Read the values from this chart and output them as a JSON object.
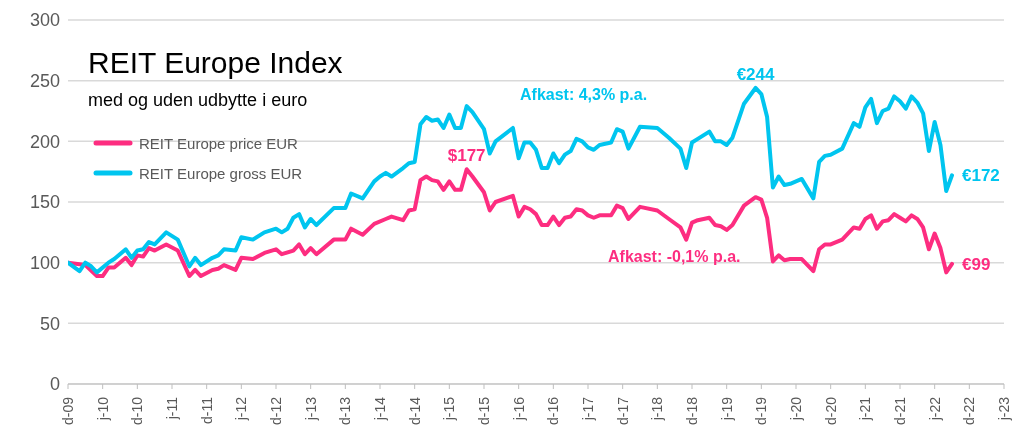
{
  "chart_data": {
    "type": "line",
    "title": "REIT Europe Index",
    "subtitle": "med og uden udbytte i euro",
    "annotations": [
      "Afkast: 4,3% p.a.",
      "Afkast: -0,1% p.a.",
      {
        "text": "$177",
        "x": "2015-09",
        "y": 177
      },
      {
        "text": "€244",
        "x": "2019-11",
        "y": 244
      },
      {
        "text": "€172",
        "x": "2022-09",
        "y": 172
      },
      {
        "text": "€99",
        "x": "2022-09",
        "y": 99
      }
    ],
    "series": [
      {
        "name": "REIT Europe price EUR",
        "color": "#fd2d80",
        "x": [
          "2009-12",
          "2010-03",
          "2010-05",
          "2010-06",
          "2010-07",
          "2010-08",
          "2010-10",
          "2010-11",
          "2010-12",
          "2011-01",
          "2011-02",
          "2011-03",
          "2011-05",
          "2011-07",
          "2011-09",
          "2011-10",
          "2011-11",
          "2012-01",
          "2012-02",
          "2012-03",
          "2012-05",
          "2012-06",
          "2012-08",
          "2012-10",
          "2012-12",
          "2013-01",
          "2013-03",
          "2013-04",
          "2013-05",
          "2013-06",
          "2013-07",
          "2013-10",
          "2013-12",
          "2014-01",
          "2014-03",
          "2014-05",
          "2014-07",
          "2014-08",
          "2014-10",
          "2014-11",
          "2014-12",
          "2015-01",
          "2015-02",
          "2015-03",
          "2015-04",
          "2015-05",
          "2015-06",
          "2015-07",
          "2015-08",
          "2015-09",
          "2015-10",
          "2015-12",
          "2016-01",
          "2016-02",
          "2016-05",
          "2016-06",
          "2016-07",
          "2016-08",
          "2016-09",
          "2016-10",
          "2016-11",
          "2016-12",
          "2017-01",
          "2017-02",
          "2017-03",
          "2017-04",
          "2017-05",
          "2017-06",
          "2017-07",
          "2017-08",
          "2017-10",
          "2017-11",
          "2017-12",
          "2018-01",
          "2018-03",
          "2018-06",
          "2018-08",
          "2018-10",
          "2018-11",
          "2018-12",
          "2019-01",
          "2019-03",
          "2019-04",
          "2019-05",
          "2019-06",
          "2019-07",
          "2019-09",
          "2019-11",
          "2019-12",
          "2020-01",
          "2020-02",
          "2020-03",
          "2020-04",
          "2020-05",
          "2020-07",
          "2020-09",
          "2020-10",
          "2020-11",
          "2020-12",
          "2021-02",
          "2021-04",
          "2021-05",
          "2021-06",
          "2021-07",
          "2021-08",
          "2021-09",
          "2021-10",
          "2021-11",
          "2021-12",
          "2022-01",
          "2022-02",
          "2022-03",
          "2022-04",
          "2022-05",
          "2022-06",
          "2022-07",
          "2022-08",
          "2022-09"
        ],
        "values": [
          100,
          98,
          89,
          89,
          96,
          96,
          104,
          98,
          106,
          105,
          112,
          110,
          115,
          110,
          89,
          94,
          89,
          94,
          95,
          98,
          94,
          104,
          103,
          108,
          111,
          107,
          110,
          115,
          107,
          112,
          107,
          119,
          119,
          128,
          123,
          132,
          136,
          138,
          135,
          143,
          144,
          168,
          171,
          168,
          167,
          160,
          167,
          160,
          160,
          177,
          171,
          158,
          143,
          150,
          155,
          138,
          146,
          144,
          140,
          131,
          131,
          138,
          131,
          137,
          138,
          144,
          143,
          139,
          137,
          139,
          139,
          147,
          145,
          136,
          146,
          143,
          136,
          129,
          119,
          133,
          135,
          137,
          131,
          130,
          127,
          131,
          147,
          154,
          152,
          137,
          101,
          106,
          102,
          103,
          103,
          93,
          111,
          115,
          115,
          119,
          129,
          128,
          136,
          139,
          128,
          134,
          135,
          140,
          137,
          134,
          139,
          136,
          129,
          111,
          124,
          112,
          92,
          99
        ]
      },
      {
        "name": "REIT Europe gross EUR",
        "color": "#00c5ef",
        "x": [
          "2009-12",
          "2010-02",
          "2010-03",
          "2010-04",
          "2010-05",
          "2010-07",
          "2010-08",
          "2010-10",
          "2010-11",
          "2010-12",
          "2011-01",
          "2011-02",
          "2011-03",
          "2011-05",
          "2011-07",
          "2011-09",
          "2011-10",
          "2011-11",
          "2012-01",
          "2012-02",
          "2012-03",
          "2012-05",
          "2012-06",
          "2012-08",
          "2012-10",
          "2012-12",
          "2013-01",
          "2013-02",
          "2013-03",
          "2013-04",
          "2013-05",
          "2013-06",
          "2013-07",
          "2013-10",
          "2013-12",
          "2014-01",
          "2014-03",
          "2014-05",
          "2014-06",
          "2014-07",
          "2014-08",
          "2014-10",
          "2014-11",
          "2014-12",
          "2015-01",
          "2015-02",
          "2015-03",
          "2015-04",
          "2015-05",
          "2015-06",
          "2015-07",
          "2015-08",
          "2015-09",
          "2015-10",
          "2015-12",
          "2016-01",
          "2016-02",
          "2016-05",
          "2016-06",
          "2016-07",
          "2016-08",
          "2016-09",
          "2016-10",
          "2016-11",
          "2016-12",
          "2017-01",
          "2017-02",
          "2017-03",
          "2017-04",
          "2017-05",
          "2017-06",
          "2017-07",
          "2017-08",
          "2017-10",
          "2017-11",
          "2017-12",
          "2018-01",
          "2018-03",
          "2018-06",
          "2018-08",
          "2018-10",
          "2018-11",
          "2018-12",
          "2019-01",
          "2019-03",
          "2019-04",
          "2019-05",
          "2019-06",
          "2019-07",
          "2019-09",
          "2019-11",
          "2019-12",
          "2020-01",
          "2020-02",
          "2020-03",
          "2020-04",
          "2020-05",
          "2020-07",
          "2020-09",
          "2020-10",
          "2020-11",
          "2020-12",
          "2021-02",
          "2021-04",
          "2021-05",
          "2021-06",
          "2021-07",
          "2021-08",
          "2021-09",
          "2021-10",
          "2021-11",
          "2021-12",
          "2022-01",
          "2022-02",
          "2022-03",
          "2022-04",
          "2022-05",
          "2022-06",
          "2022-07",
          "2022-08",
          "2022-09"
        ],
        "values": [
          100,
          93,
          100,
          97,
          92,
          100,
          103,
          111,
          104,
          110,
          111,
          117,
          115,
          125,
          119,
          97,
          104,
          98,
          104,
          106,
          111,
          110,
          121,
          119,
          125,
          128,
          125,
          128,
          137,
          140,
          129,
          136,
          131,
          145,
          145,
          157,
          153,
          167,
          171,
          174,
          171,
          178,
          182,
          183,
          214,
          220,
          217,
          218,
          211,
          222,
          211,
          211,
          229,
          224,
          210,
          190,
          200,
          211,
          186,
          199,
          199,
          193,
          178,
          178,
          190,
          182,
          189,
          192,
          202,
          200,
          195,
          193,
          197,
          199,
          210,
          208,
          194,
          212,
          211,
          203,
          194,
          178,
          199,
          202,
          208,
          200,
          200,
          197,
          203,
          231,
          244,
          239,
          220,
          162,
          171,
          164,
          165,
          169,
          153,
          183,
          188,
          189,
          194,
          215,
          212,
          228,
          235,
          215,
          225,
          227,
          237,
          233,
          227,
          237,
          232,
          223,
          192,
          216,
          197,
          159,
          172
        ]
      }
    ],
    "xlim": [
      "2009-12",
      "2023-06"
    ],
    "xticks": [
      {
        "value": "2009-12",
        "label": "d-09"
      },
      {
        "value": "2010-06",
        "label": "j-10"
      },
      {
        "value": "2010-12",
        "label": "d-10"
      },
      {
        "value": "2011-06",
        "label": "j-11"
      },
      {
        "value": "2011-12",
        "label": "d-11"
      },
      {
        "value": "2012-06",
        "label": "j-12"
      },
      {
        "value": "2012-12",
        "label": "d-12"
      },
      {
        "value": "2013-06",
        "label": "j-13"
      },
      {
        "value": "2013-12",
        "label": "d-13"
      },
      {
        "value": "2014-06",
        "label": "j-14"
      },
      {
        "value": "2014-12",
        "label": "d-14"
      },
      {
        "value": "2015-06",
        "label": "j-15"
      },
      {
        "value": "2015-12",
        "label": "d-15"
      },
      {
        "value": "2016-06",
        "label": "j-16"
      },
      {
        "value": "2016-12",
        "label": "d-16"
      },
      {
        "value": "2017-06",
        "label": "j-17"
      },
      {
        "value": "2017-12",
        "label": "d-17"
      },
      {
        "value": "2018-06",
        "label": "j-18"
      },
      {
        "value": "2018-12",
        "label": "d-18"
      },
      {
        "value": "2019-06",
        "label": "j-19"
      },
      {
        "value": "2019-12",
        "label": "d-19"
      },
      {
        "value": "2020-06",
        "label": "j-20"
      },
      {
        "value": "2020-12",
        "label": "d-20"
      },
      {
        "value": "2021-06",
        "label": "j-21"
      },
      {
        "value": "2021-12",
        "label": "d-21"
      },
      {
        "value": "2022-06",
        "label": "j-22"
      },
      {
        "value": "2022-12",
        "label": "d-22"
      },
      {
        "value": "2023-06",
        "label": "j-23"
      }
    ],
    "ylim": [
      0,
      300
    ],
    "yticks": [
      0,
      50,
      100,
      150,
      200,
      250,
      300
    ],
    "grid": "y",
    "legend": "top left",
    "marker": "none",
    "line_style": "solid"
  }
}
